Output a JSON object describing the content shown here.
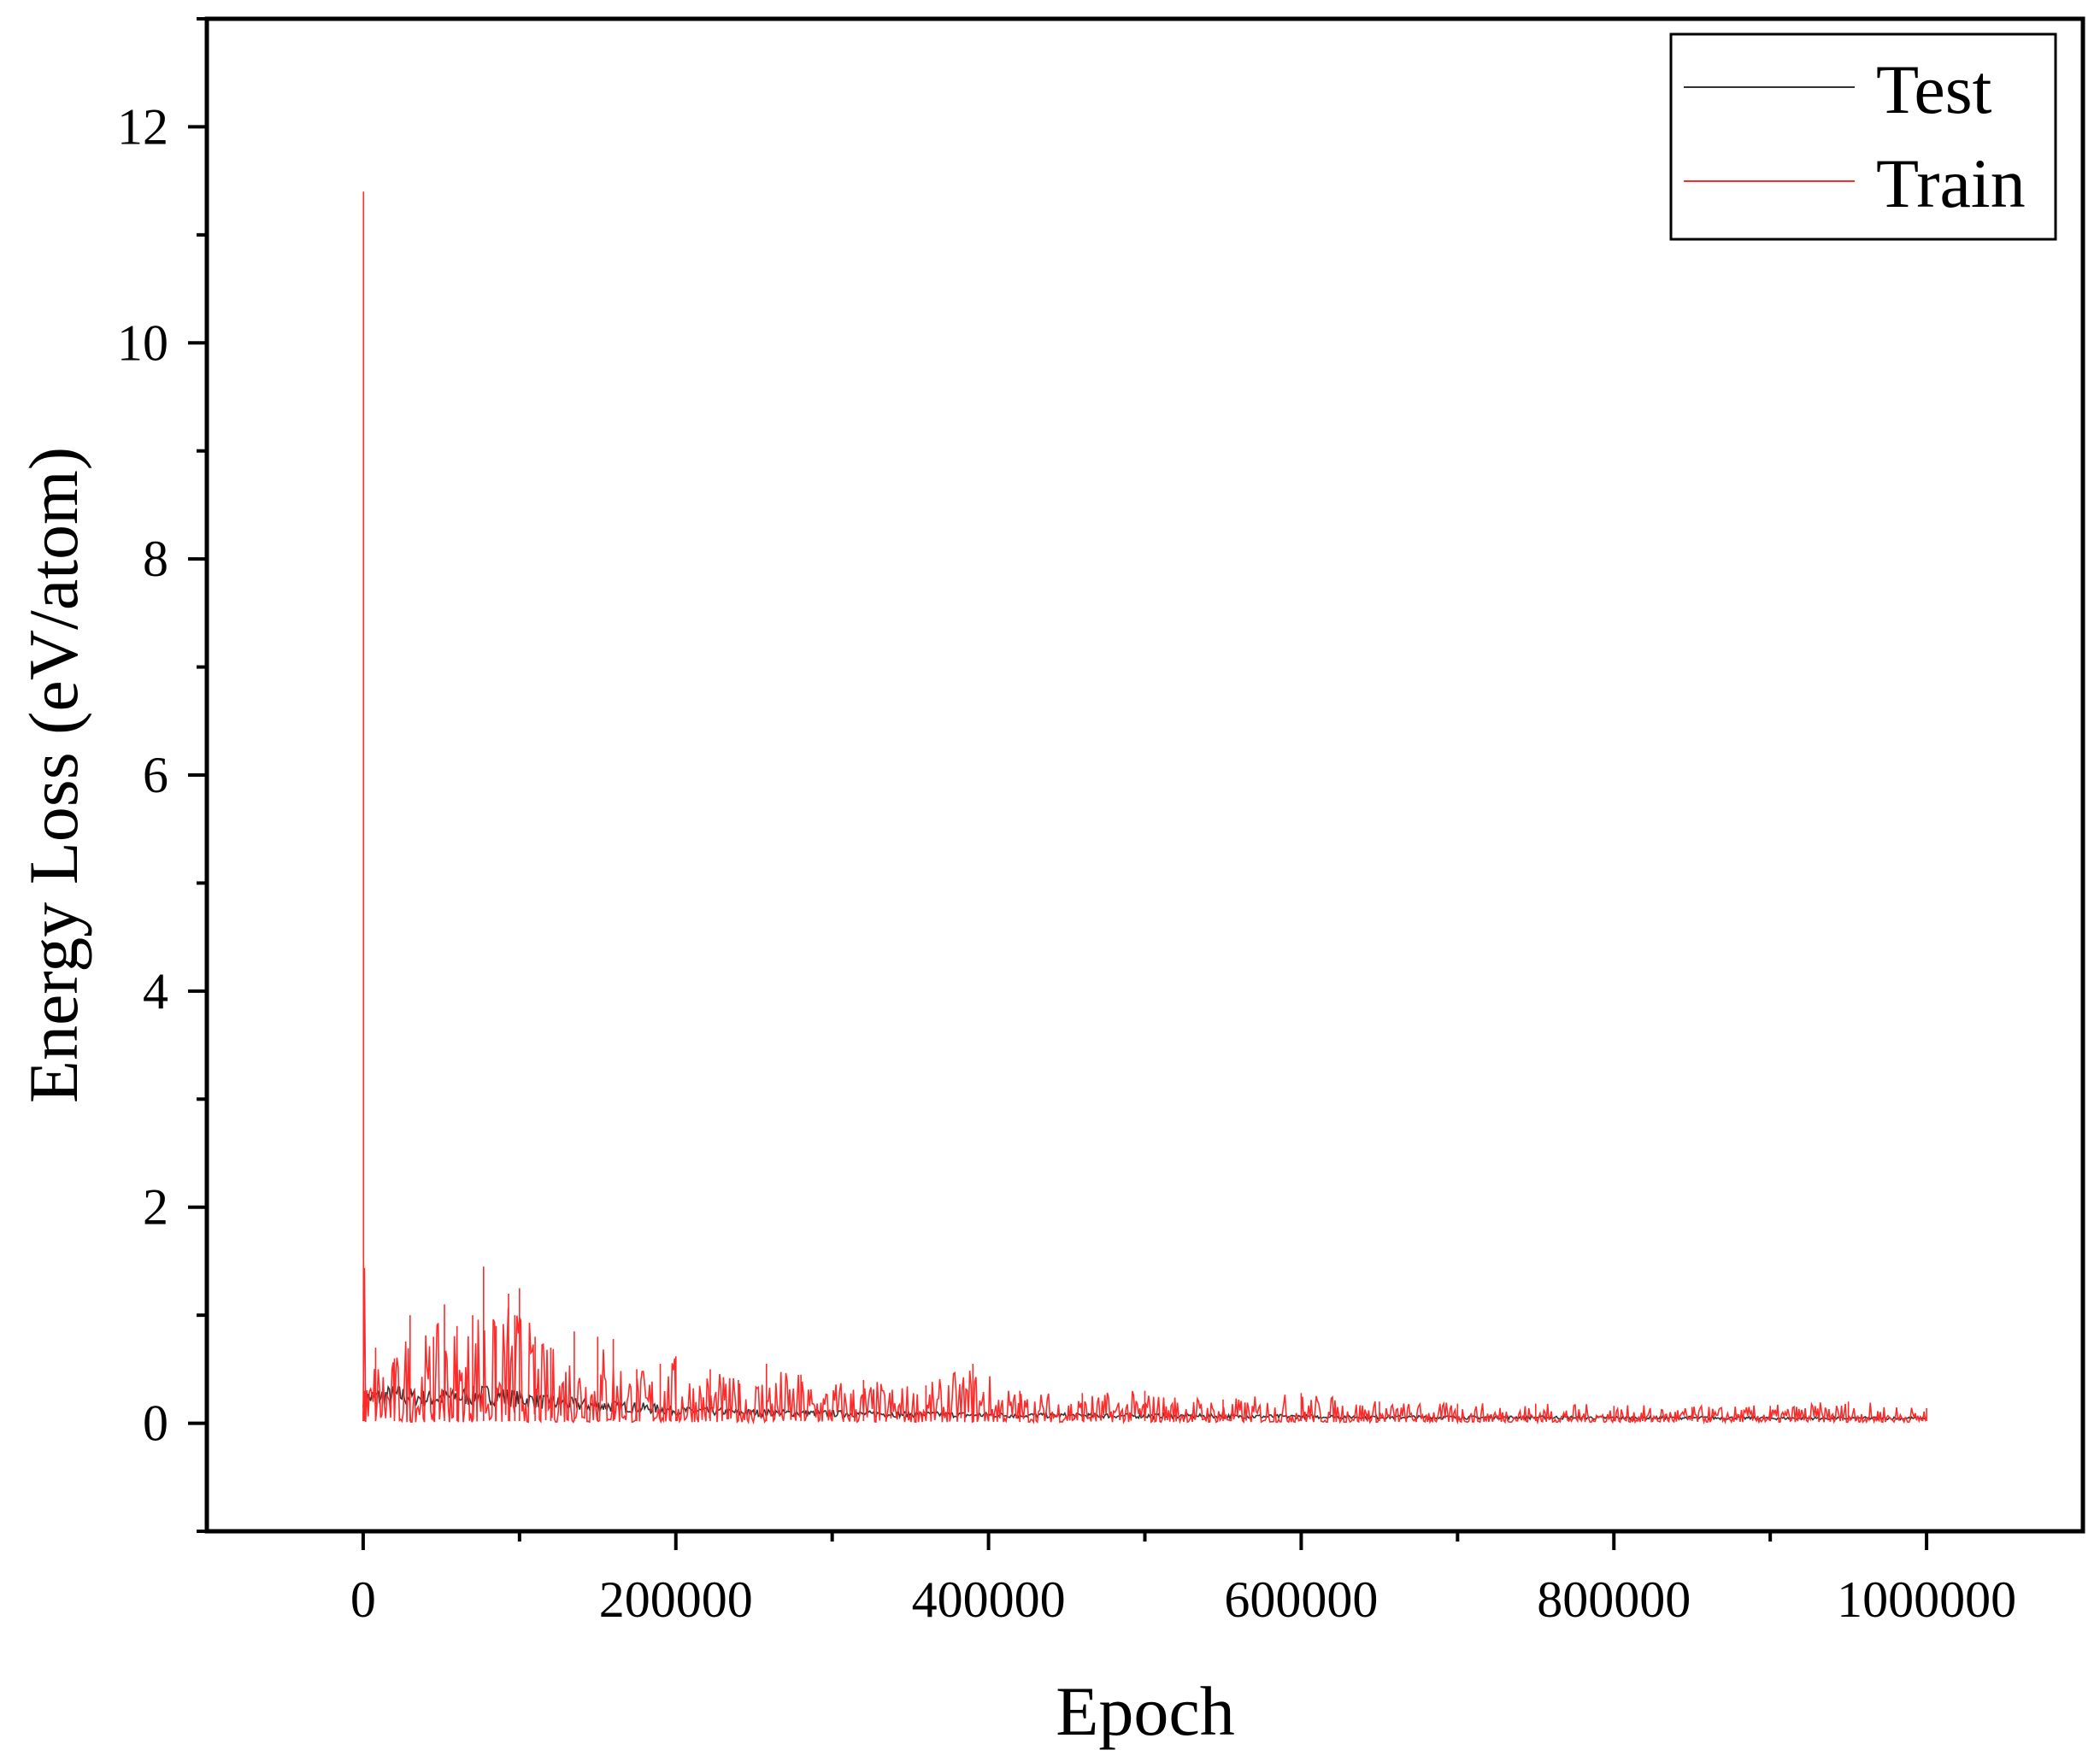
{
  "chart_data": {
    "type": "line",
    "title": "",
    "xlabel": "Epoch",
    "ylabel": "Energy Loss (eV/atom)",
    "xlim": [
      -100000,
      1100000
    ],
    "ylim": [
      -1,
      13
    ],
    "xticks": [
      0,
      200000,
      400000,
      600000,
      800000,
      1000000
    ],
    "xtick_labels": [
      "0",
      "200000",
      "400000",
      "600000",
      "800000",
      "1000000"
    ],
    "yticks": [
      0,
      2,
      4,
      6,
      8,
      10,
      12
    ],
    "ytick_labels": [
      "0",
      "2",
      "4",
      "6",
      "8",
      "10",
      "12"
    ],
    "grid": false,
    "legend_position": "top-right",
    "colors": {
      "Test": "#333333",
      "Train": "#ff2a2a"
    },
    "series": [
      {
        "name": "Test",
        "x": [
          0,
          20000,
          40000,
          60000,
          80000,
          100000,
          120000,
          140000,
          160000,
          180000,
          200000,
          250000,
          300000,
          350000,
          400000,
          450000,
          500000,
          550000,
          600000,
          650000,
          700000,
          750000,
          800000,
          850000,
          900000,
          950000,
          1000000
        ],
        "y": [
          0.3,
          0.35,
          0.3,
          0.32,
          0.35,
          0.3,
          0.25,
          0.22,
          0.2,
          0.18,
          0.15,
          0.12,
          0.11,
          0.1,
          0.09,
          0.085,
          0.08,
          0.075,
          0.07,
          0.065,
          0.06,
          0.06,
          0.055,
          0.055,
          0.05,
          0.05,
          0.05
        ]
      },
      {
        "name": "Train",
        "x": [
          0,
          200,
          1000,
          8000,
          20000,
          30000,
          45000,
          52000,
          60000,
          70000,
          77000,
          85000,
          93000,
          97000,
          100000,
          110000,
          120000,
          135000,
          150000,
          160000,
          175000,
          190000,
          200000,
          222000,
          240000,
          258000,
          280000,
          320000,
          360000,
          390000,
          420000,
          460000,
          500000,
          550000,
          600000,
          650000,
          700000,
          750000,
          800000,
          850000,
          900000,
          950000,
          1000000
        ],
        "y": [
          0.1,
          11.4,
          0.3,
          0.7,
          0.6,
          1.0,
          0.8,
          1.1,
          0.9,
          1.0,
          1.45,
          0.9,
          1.2,
          1.0,
          1.25,
          0.8,
          0.7,
          0.85,
          0.8,
          0.78,
          0.5,
          0.55,
          0.62,
          0.5,
          0.4,
          0.55,
          0.45,
          0.4,
          0.35,
          0.55,
          0.3,
          0.28,
          0.3,
          0.22,
          0.28,
          0.2,
          0.18,
          0.18,
          0.16,
          0.15,
          0.16,
          0.2,
          0.14
        ]
      }
    ]
  }
}
